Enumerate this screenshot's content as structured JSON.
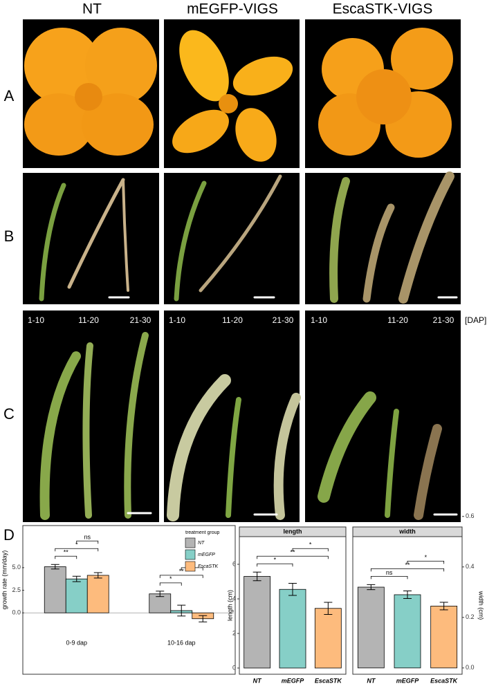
{
  "figure": {
    "columns": [
      "NT",
      "mEGFP-VIGS",
      "EscaSTK-VIGS"
    ],
    "rows": [
      "A",
      "B",
      "C",
      "D"
    ],
    "stage_labels": [
      "1-10",
      "11-20",
      "21-30"
    ],
    "stage_unit": "[DAP]"
  },
  "chart_data": [
    {
      "type": "bar",
      "ylabel": "growth rate (mm/day)",
      "categories": [
        "0-9 dap",
        "10-16 dap"
      ],
      "legend_title": "treatment group",
      "series": [
        {
          "name": "NT",
          "color": "#b4b4b4",
          "values": [
            5.1,
            2.1
          ],
          "errors": [
            0.25,
            0.3
          ]
        },
        {
          "name": "mEGFP",
          "color": "#86cfc7",
          "values": [
            3.75,
            0.25
          ],
          "errors": [
            0.3,
            0.6
          ]
        },
        {
          "name": "EscaSTK",
          "color": "#fdbb7d",
          "values": [
            4.15,
            -0.65
          ],
          "errors": [
            0.3,
            0.35
          ]
        }
      ],
      "ylim": [
        -2.2,
        9.5
      ],
      "yticks": [
        {
          "value": 0,
          "label": "0.0"
        },
        2.5,
        {
          "value": 5,
          "label": "5.0"
        }
      ],
      "hline": 0,
      "comparisons": [
        {
          "category": 0,
          "pair": [
            0,
            1
          ],
          "label": "**"
        },
        {
          "category": 0,
          "pair": [
            0,
            2
          ],
          "label": "*"
        },
        {
          "category": 0,
          "pair": [
            1,
            2
          ],
          "label": "ns"
        },
        {
          "category": 1,
          "pair": [
            0,
            1
          ],
          "label": "*"
        },
        {
          "category": 1,
          "pair": [
            0,
            2
          ],
          "label": "**"
        },
        {
          "category": 1,
          "pair": [
            1,
            2
          ],
          "label": "ns"
        }
      ]
    },
    {
      "type": "bar",
      "title": "length",
      "ylabel": "length (cm)",
      "categories": [
        "NT",
        "mEGFP",
        "EscaSTK"
      ],
      "values": [
        5.3,
        4.55,
        3.45
      ],
      "errors": [
        0.25,
        0.35,
        0.35
      ],
      "colors": [
        "#b4b4b4",
        "#86cfc7",
        "#fdbb7d"
      ],
      "ylim": [
        -0.36,
        7.6
      ],
      "yticks": [
        0,
        2,
        4,
        6
      ],
      "comparisons": [
        {
          "pair": [
            0,
            1
          ],
          "label": "*"
        },
        {
          "pair": [
            0,
            2
          ],
          "label": "**"
        },
        {
          "pair": [
            1,
            2
          ],
          "label": "*"
        }
      ]
    },
    {
      "type": "bar",
      "title": "width",
      "ylabel": "width (cm)",
      "categories": [
        "NT",
        "mEGFP",
        "EscaSTK"
      ],
      "values": [
        0.32,
        0.29,
        0.245
      ],
      "errors": [
        0.01,
        0.015,
        0.015
      ],
      "colors": [
        "#b4b4b4",
        "#86cfc7",
        "#fdbb7d"
      ],
      "ylim": [
        -0.025,
        0.52
      ],
      "yticks": [
        {
          "value": 0,
          "label": "0.0"
        },
        0.2,
        0.4,
        0.6
      ],
      "comparisons": [
        {
          "pair": [
            0,
            1
          ],
          "label": "ns"
        },
        {
          "pair": [
            0,
            2
          ],
          "label": "**"
        },
        {
          "pair": [
            1,
            2
          ],
          "label": "*"
        }
      ]
    }
  ]
}
